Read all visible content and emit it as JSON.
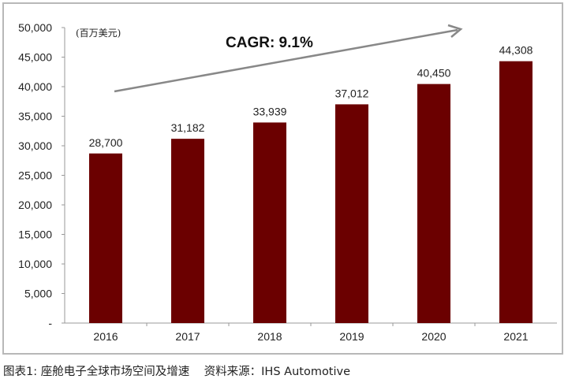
{
  "chart_data": {
    "type": "bar",
    "categories": [
      "2016",
      "2017",
      "2018",
      "2019",
      "2020",
      "2021"
    ],
    "values": [
      28700,
      31182,
      33939,
      37012,
      40450,
      44308
    ],
    "data_labels": [
      "28,700",
      "31,182",
      "33,939",
      "37,012",
      "40,450",
      "44,308"
    ],
    "unit_label": "(百万美元)",
    "annotation": "CAGR: 9.1%",
    "ylim": [
      0,
      50000
    ],
    "yticks": [
      0,
      5000,
      10000,
      15000,
      20000,
      25000,
      30000,
      35000,
      40000,
      45000,
      50000
    ],
    "ytick_labels": [
      "-",
      "5,000",
      "10,000",
      "15,000",
      "20,000",
      "25,000",
      "30,000",
      "35,000",
      "40,000",
      "45,000",
      "50,000"
    ],
    "bar_color": "#6b0000",
    "grid": false,
    "legend": "none"
  },
  "caption": "图表1: 座舱电子全球市场空间及增速    资料来源：IHS Automotive"
}
